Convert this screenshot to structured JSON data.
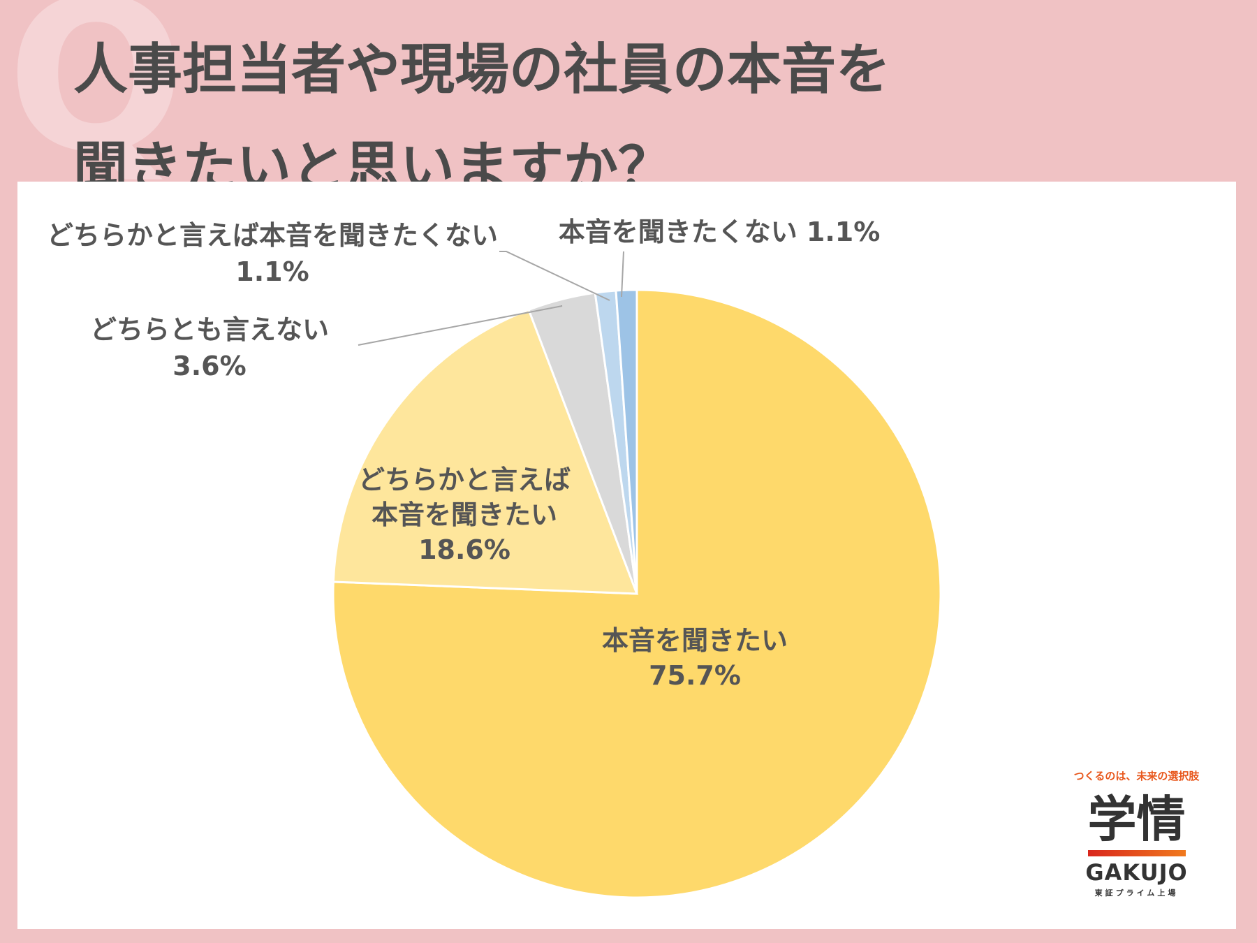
{
  "title": {
    "line1": "人事担当者や現場の社員の本音を",
    "line2": "聞きたいと思いますか？"
  },
  "chart_data": {
    "type": "pie",
    "start": "12 o'clock",
    "direction": "clockwise",
    "slices": [
      {
        "label_lines": [
          "本音を聞きたい"
        ],
        "value": 75.7,
        "value_text": "75.7%",
        "color": "#fed96b"
      },
      {
        "label_lines": [
          "どちらかと言えば",
          "本音を聞きたい"
        ],
        "value": 18.6,
        "value_text": "18.6%",
        "color": "#fee69c"
      },
      {
        "label_lines": [
          "どちらとも言えない"
        ],
        "value": 3.6,
        "value_text": "3.6%",
        "color": "#d9d9d9"
      },
      {
        "label_lines": [
          "どちらかと言えば本音を聞きたくない"
        ],
        "value": 1.1,
        "value_text": "1.1%",
        "color": "#bdd7ee"
      },
      {
        "label_lines": [
          "本音を聞きたくない"
        ],
        "value": 1.1,
        "value_text": "1.1%",
        "color": "#9dc3e6"
      }
    ]
  },
  "brand": {
    "tagline": "つくるのは、未来の選択肢",
    "name_kanji": "学情",
    "name_latin": "GAKUJO",
    "listing": "東証プライム上場"
  },
  "decor": {
    "question_mark": "Q"
  }
}
